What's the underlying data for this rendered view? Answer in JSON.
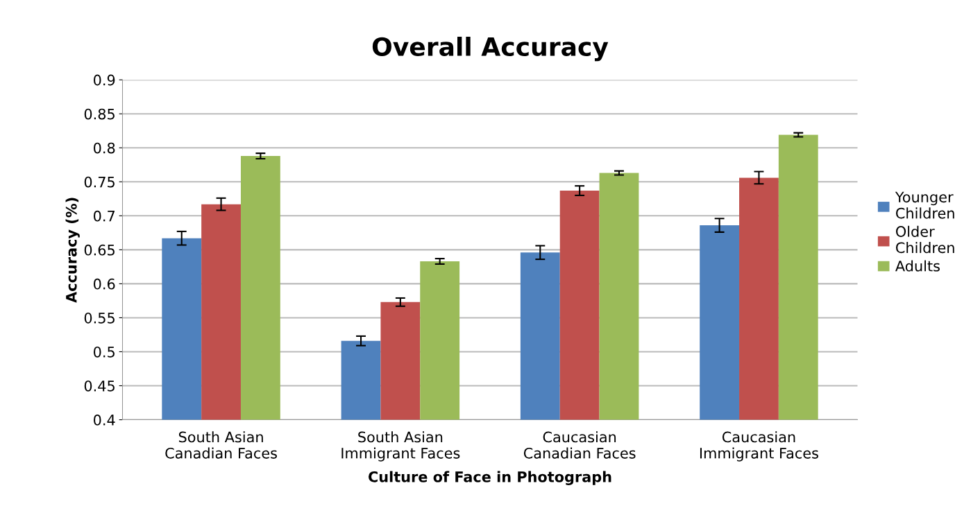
{
  "chart_data": {
    "type": "bar",
    "title": "Overall Accuracy",
    "xlabel": "Culture of Face in Photograph",
    "ylabel": "Accuracy (%)",
    "categories": [
      "South Asian\nCanadian Faces",
      "South Asian\nImmigrant Faces",
      "Caucasian\nCanadian Faces",
      "Caucasian\nImmigrant Faces"
    ],
    "series": [
      {
        "name": "Younger\nChildren",
        "color": "#4f81bd",
        "values": [
          0.667,
          0.516,
          0.646,
          0.686
        ],
        "errors": [
          0.01,
          0.007,
          0.01,
          0.01
        ]
      },
      {
        "name": "Older\nChildren",
        "color": "#c0504d",
        "values": [
          0.717,
          0.573,
          0.737,
          0.756
        ],
        "errors": [
          0.009,
          0.006,
          0.007,
          0.009
        ]
      },
      {
        "name": "Adults",
        "color": "#9bbb59",
        "values": [
          0.788,
          0.633,
          0.763,
          0.819
        ],
        "errors": [
          0.004,
          0.004,
          0.003,
          0.003
        ]
      }
    ],
    "ylim": [
      0.4,
      0.9
    ],
    "yticks": [
      0.4,
      0.45,
      0.5,
      0.55,
      0.6,
      0.65,
      0.7,
      0.75,
      0.8,
      0.85,
      0.9
    ],
    "grid": "y",
    "legend": "right"
  }
}
